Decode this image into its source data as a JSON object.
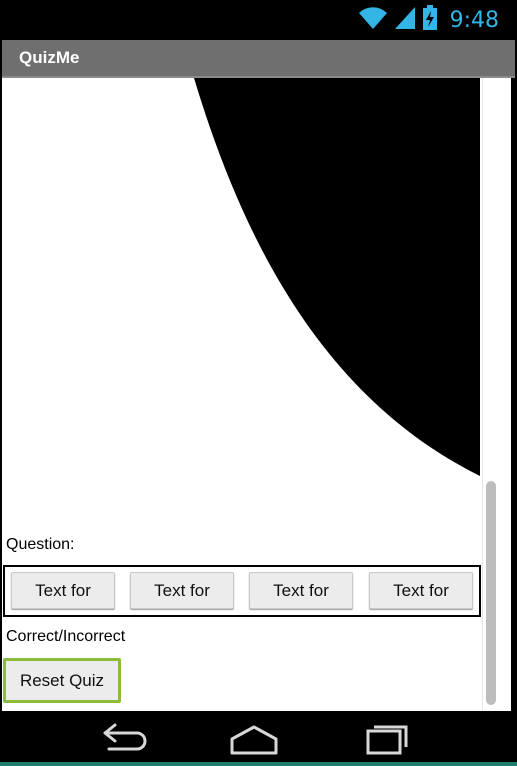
{
  "status_bar": {
    "time": "9:48",
    "icons": [
      "wifi-icon",
      "signal-icon",
      "battery-charging-icon"
    ],
    "accent_color": "#33b5e5"
  },
  "app": {
    "title": "QuizMe",
    "title_bar_color": "#6f6f6f"
  },
  "quiz": {
    "question_label": "Question:",
    "answers": [
      "Text for",
      "Text for",
      "Text for",
      "Text for"
    ],
    "result_label": "Correct/Incorrect",
    "reset_label": "Reset Quiz",
    "focus_color": "#8cbd3a"
  },
  "nav_bar": {
    "icons": [
      "back-icon",
      "home-icon",
      "recent-apps-icon"
    ]
  }
}
